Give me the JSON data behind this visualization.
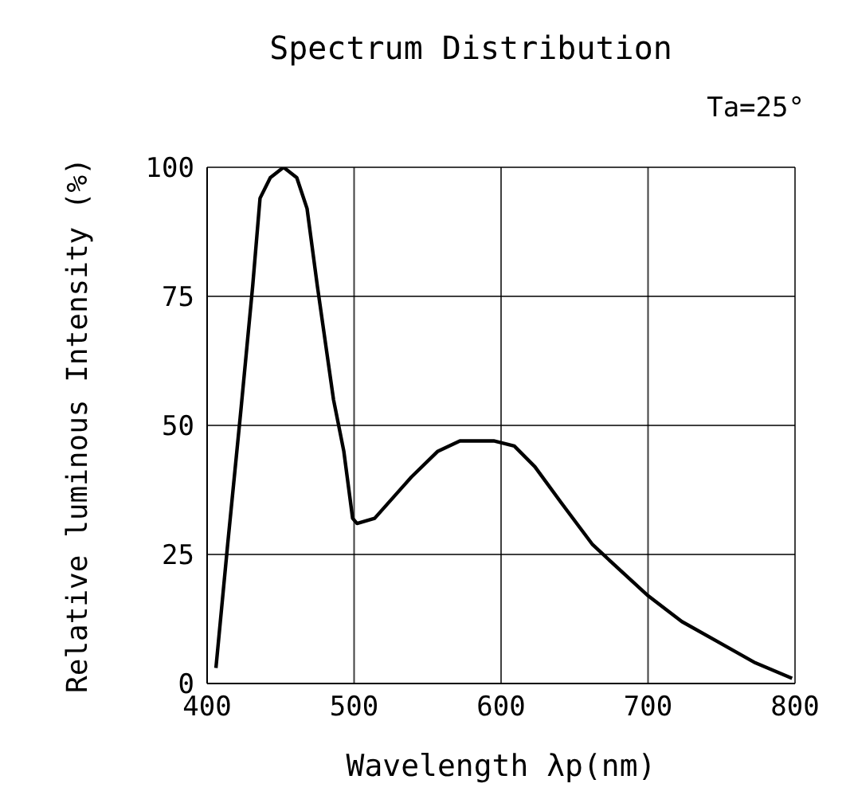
{
  "chart_data": {
    "type": "line",
    "title": "Spectrum Distribution",
    "annotations": [
      "Ta=25°"
    ],
    "xlabel": "Wavelength λp(nm)",
    "ylabel": "Relative luminous Intensity (%)",
    "series": [
      {
        "color": "#000000",
        "x": [
          406,
          414,
          423,
          431,
          436,
          443,
          452,
          461,
          468,
          475,
          486,
          493,
          499,
          502,
          514,
          539,
          557,
          572,
          595,
          609,
          623,
          641,
          662,
          677,
          700,
          723,
          748,
          773,
          798
        ],
        "values": [
          3,
          27,
          53,
          77,
          94,
          98,
          100,
          98,
          92,
          77,
          55,
          45,
          32,
          31,
          32,
          40,
          45,
          47,
          47,
          46,
          42,
          35,
          27,
          23,
          17,
          12,
          8,
          4,
          1
        ]
      }
    ],
    "xlim": [
      400,
      800
    ],
    "xticks": [
      400,
      500,
      600,
      700,
      800
    ],
    "ylim": [
      0,
      100
    ],
    "yticks": [
      0,
      25,
      50,
      75,
      100
    ],
    "grid": true,
    "legend": false,
    "marker": "none",
    "line_style": "solid"
  }
}
